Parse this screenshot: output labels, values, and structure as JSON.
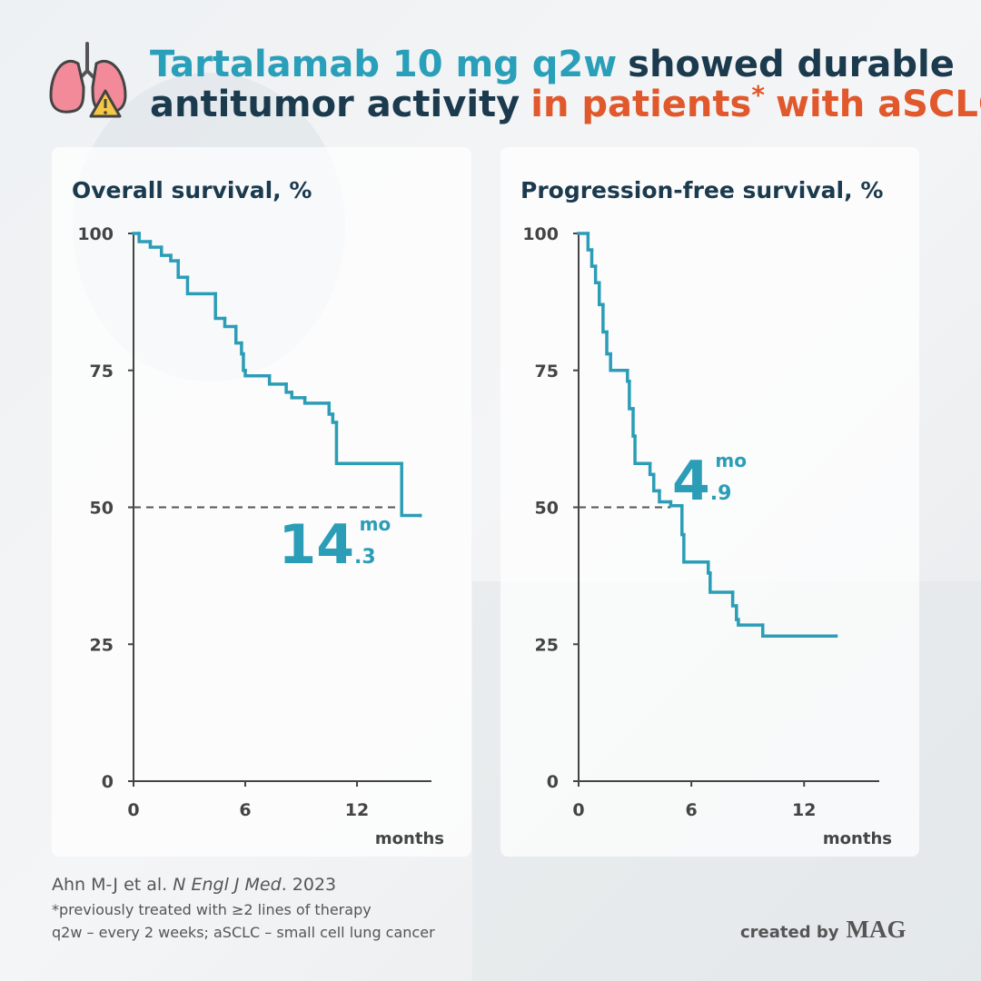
{
  "header": {
    "line1": [
      "Tartalamab 10 mg q2w",
      "showed durable"
    ],
    "line2": [
      "antitumor activity",
      "in patients",
      "*",
      "with aSCLC"
    ]
  },
  "chart_data": [
    {
      "type": "line",
      "step": "post",
      "title": "Overall survival, %",
      "xlabel": "months",
      "color": "#2b9db6",
      "x": [
        0,
        0.3,
        0.9,
        1.5,
        2.0,
        2.4,
        2.9,
        4.4,
        4.9,
        5.5,
        5.8,
        5.9,
        6.0,
        7.3,
        8.2,
        8.5,
        9.2,
        10.5,
        10.7,
        10.9,
        14.4,
        15.4
      ],
      "values": [
        100,
        98.5,
        97.5,
        96,
        95,
        92,
        89,
        84.5,
        83,
        80,
        78,
        75,
        74,
        72.5,
        71,
        70,
        69,
        67,
        65.5,
        58,
        48.5,
        48.5
      ],
      "median": {
        "y": 50,
        "x": 14.3,
        "whole": "14",
        "decimal": ".3",
        "unit": "mo"
      },
      "xlim": [
        0,
        16
      ],
      "xticks": [
        0,
        6,
        12
      ],
      "ylim": [
        0,
        100
      ],
      "yticks": [
        0,
        25,
        50,
        75,
        100
      ]
    },
    {
      "type": "line",
      "step": "post",
      "title": "Progression-free survival, %",
      "xlabel": "months",
      "color": "#2b9db6",
      "x": [
        0,
        0.5,
        0.7,
        0.9,
        1.1,
        1.3,
        1.5,
        1.7,
        2.6,
        2.7,
        2.9,
        3.0,
        3.8,
        4.0,
        4.3,
        4.9,
        5.5,
        5.6,
        6.9,
        7.0,
        8.2,
        8.4,
        8.5,
        9.8,
        13.7
      ],
      "values": [
        100,
        97,
        94,
        91,
        87,
        82,
        78,
        75,
        73,
        68,
        63,
        58,
        56,
        53,
        51,
        50.3,
        45,
        40,
        38,
        34.5,
        32,
        29.5,
        28.5,
        26.5,
        26.5
      ],
      "median": {
        "y": 50,
        "x": 4.9,
        "whole": "4",
        "decimal": ".9",
        "unit": "mo"
      },
      "xlim": [
        0,
        16
      ],
      "xticks": [
        0,
        6,
        12
      ],
      "ylim": [
        0,
        100
      ],
      "yticks": [
        0,
        25,
        50,
        75,
        100
      ]
    }
  ],
  "footer": {
    "citation": [
      "Ahn M-J et al.",
      "N Engl J Med",
      ". 2023"
    ],
    "note1": "*previously treated with ≥2 lines of therapy",
    "note2": "q2w – every 2 weeks; aSCLC – small cell lung cancer",
    "credit": "created by",
    "brand": "MAG"
  }
}
